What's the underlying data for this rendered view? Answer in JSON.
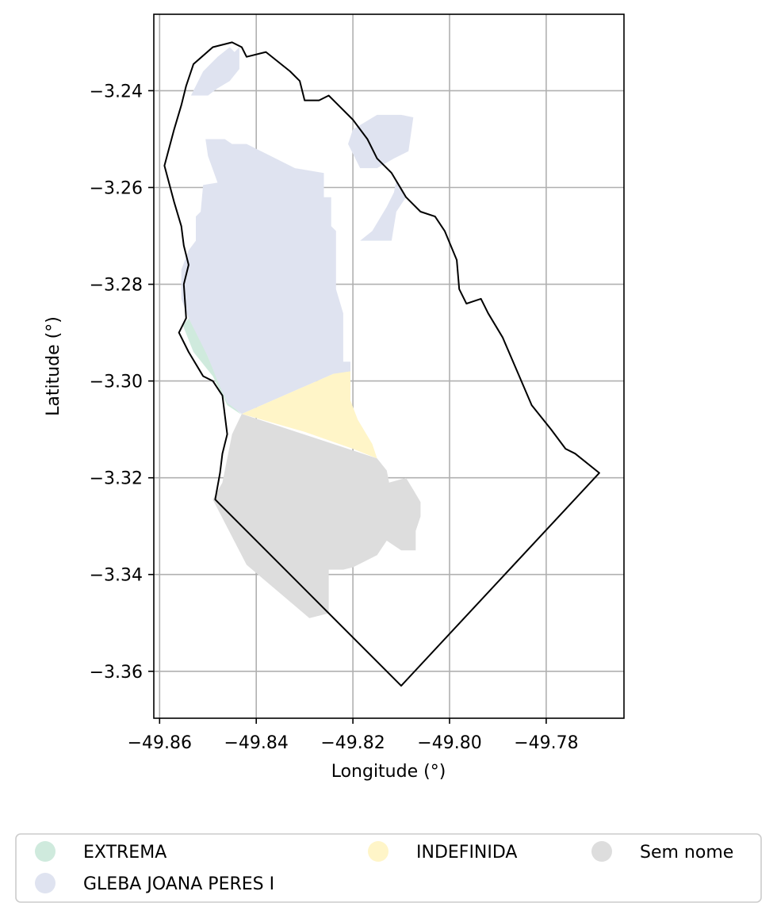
{
  "chart_data": {
    "type": "map",
    "title": "",
    "xlabel": "Longitude (°)",
    "ylabel": "Latitude (°)",
    "xlim": [
      -49.8612,
      -49.7639
    ],
    "ylim": [
      -3.3697,
      -3.2242
    ],
    "grid": true,
    "x_ticks": [
      {
        "value": -49.86,
        "label": "−49.86"
      },
      {
        "value": -49.84,
        "label": "−49.84"
      },
      {
        "value": -49.82,
        "label": "−49.82"
      },
      {
        "value": -49.8,
        "label": "−49.80"
      },
      {
        "value": -49.78,
        "label": "−49.78"
      }
    ],
    "y_ticks": [
      {
        "value": -3.24,
        "label": "−3.24"
      },
      {
        "value": -3.26,
        "label": "−3.26"
      },
      {
        "value": -3.28,
        "label": "−3.28"
      },
      {
        "value": -3.3,
        "label": "−3.30"
      },
      {
        "value": -3.32,
        "label": "−3.32"
      },
      {
        "value": -3.34,
        "label": "−3.34"
      },
      {
        "value": -3.36,
        "label": "−3.36"
      }
    ],
    "legend": {
      "placement": "bottom, below plot",
      "columns": 3,
      "entries": [
        {
          "label": "EXTREMA",
          "color": "#cfeadd"
        },
        {
          "label": "GLEBA JOANA PERES I",
          "color": "#dfe3f0"
        },
        {
          "label": "INDEFINIDA",
          "color": "#fff5c8"
        },
        {
          "label": "Sem nome",
          "color": "#dddddd"
        }
      ]
    },
    "regions": [
      {
        "name": "EXTREMA",
        "color": "#cfeadd",
        "lonlat": [
          [
            -49.8552,
            -3.2885
          ],
          [
            -49.8535,
            -3.2865
          ],
          [
            -49.85,
            -3.295
          ],
          [
            -49.847,
            -3.302
          ],
          [
            -49.844,
            -3.306
          ],
          [
            -49.843,
            -3.307
          ],
          [
            -49.846,
            -3.305
          ],
          [
            -49.849,
            -3.299
          ],
          [
            -49.853,
            -3.294
          ],
          [
            -49.8552,
            -3.2885
          ]
        ]
      },
      {
        "name": "GLEBA JOANA PERES I",
        "color": "#dfe3f0",
        "lonlat": [
          [
            -49.843,
            -3.3068
          ],
          [
            -49.824,
            -3.2985
          ],
          [
            -49.8205,
            -3.299
          ],
          [
            -49.8205,
            -3.296
          ],
          [
            -49.822,
            -3.296
          ],
          [
            -49.822,
            -3.286
          ],
          [
            -49.8235,
            -3.281
          ],
          [
            -49.8235,
            -3.269
          ],
          [
            -49.8245,
            -3.268
          ],
          [
            -49.8245,
            -3.262
          ],
          [
            -49.826,
            -3.262
          ],
          [
            -49.826,
            -3.257
          ],
          [
            -49.832,
            -3.256
          ],
          [
            -49.838,
            -3.253
          ],
          [
            -49.842,
            -3.251
          ],
          [
            -49.845,
            -3.251
          ],
          [
            -49.8465,
            -3.25
          ],
          [
            -49.8505,
            -3.25
          ],
          [
            -49.85,
            -3.2535
          ],
          [
            -49.848,
            -3.259
          ],
          [
            -49.851,
            -3.2595
          ],
          [
            -49.8515,
            -3.265
          ],
          [
            -49.8525,
            -3.266
          ],
          [
            -49.8525,
            -3.271
          ],
          [
            -49.854,
            -3.273
          ],
          [
            -49.8555,
            -3.277
          ],
          [
            -49.8555,
            -3.283
          ],
          [
            -49.854,
            -3.287
          ],
          [
            -49.85,
            -3.295
          ],
          [
            -49.848,
            -3.3
          ],
          [
            -49.846,
            -3.3045
          ],
          [
            -49.843,
            -3.3068
          ]
        ]
      },
      {
        "name": "GLEBA JOANA PERES I",
        "color": "#dfe3f0",
        "lonlat": [
          [
            -49.8535,
            -3.241
          ],
          [
            -49.851,
            -3.236
          ],
          [
            -49.848,
            -3.233
          ],
          [
            -49.8455,
            -3.231
          ],
          [
            -49.8445,
            -3.232
          ],
          [
            -49.8435,
            -3.231
          ],
          [
            -49.8435,
            -3.2355
          ],
          [
            -49.8455,
            -3.238
          ],
          [
            -49.848,
            -3.2395
          ],
          [
            -49.85,
            -3.241
          ],
          [
            -49.8535,
            -3.241
          ]
        ]
      },
      {
        "name": "GLEBA JOANA PERES I",
        "color": "#dfe3f0",
        "lonlat": [
          [
            -49.8185,
            -3.256
          ],
          [
            -49.821,
            -3.251
          ],
          [
            -49.82,
            -3.248
          ],
          [
            -49.815,
            -3.245
          ],
          [
            -49.81,
            -3.245
          ],
          [
            -49.8075,
            -3.2455
          ],
          [
            -49.8085,
            -3.2525
          ],
          [
            -49.8115,
            -3.254
          ],
          [
            -49.815,
            -3.256
          ],
          [
            -49.8185,
            -3.256
          ]
        ]
      },
      {
        "name": "GLEBA JOANA PERES I",
        "color": "#dfe3f0",
        "lonlat": [
          [
            -49.8185,
            -3.271
          ],
          [
            -49.812,
            -3.271
          ],
          [
            -49.811,
            -3.265
          ],
          [
            -49.809,
            -3.262
          ],
          [
            -49.811,
            -3.2585
          ],
          [
            -49.8115,
            -3.261
          ],
          [
            -49.813,
            -3.264
          ],
          [
            -49.816,
            -3.269
          ],
          [
            -49.8185,
            -3.271
          ]
        ]
      },
      {
        "name": "INDEFINIDA",
        "color": "#fff5c8",
        "lonlat": [
          [
            -49.843,
            -3.3068
          ],
          [
            -49.824,
            -3.2985
          ],
          [
            -49.8205,
            -3.298
          ],
          [
            -49.8205,
            -3.304
          ],
          [
            -49.819,
            -3.308
          ],
          [
            -49.816,
            -3.313
          ],
          [
            -49.815,
            -3.316
          ],
          [
            -49.82,
            -3.314
          ],
          [
            -49.83,
            -3.3105
          ],
          [
            -49.843,
            -3.3068
          ]
        ]
      },
      {
        "name": "Sem nome",
        "color": "#dddddd",
        "lonlat": [
          [
            -49.843,
            -3.3068
          ],
          [
            -49.815,
            -3.316
          ],
          [
            -49.813,
            -3.3185
          ],
          [
            -49.8125,
            -3.321
          ],
          [
            -49.809,
            -3.32
          ],
          [
            -49.8075,
            -3.3225
          ],
          [
            -49.806,
            -3.325
          ],
          [
            -49.806,
            -3.328
          ],
          [
            -49.807,
            -3.331
          ],
          [
            -49.807,
            -3.335
          ],
          [
            -49.81,
            -3.335
          ],
          [
            -49.813,
            -3.333
          ],
          [
            -49.815,
            -3.336
          ],
          [
            -49.818,
            -3.3375
          ],
          [
            -49.82,
            -3.3385
          ],
          [
            -49.822,
            -3.339
          ],
          [
            -49.825,
            -3.339
          ],
          [
            -49.825,
            -3.348
          ],
          [
            -49.829,
            -3.349
          ],
          [
            -49.842,
            -3.338
          ],
          [
            -49.849,
            -3.3245
          ],
          [
            -49.847,
            -3.321
          ],
          [
            -49.846,
            -3.316
          ],
          [
            -49.845,
            -3.311
          ],
          [
            -49.843,
            -3.3068
          ]
        ]
      }
    ],
    "boundary_lonlat": [
      [
        -49.859,
        -3.2555
      ],
      [
        -49.857,
        -3.248
      ],
      [
        -49.8555,
        -3.243
      ],
      [
        -49.8545,
        -3.239
      ],
      [
        -49.853,
        -3.2345
      ],
      [
        -49.849,
        -3.231
      ],
      [
        -49.845,
        -3.23
      ],
      [
        -49.843,
        -3.231
      ],
      [
        -49.842,
        -3.233
      ],
      [
        -49.838,
        -3.232
      ],
      [
        -49.833,
        -3.236
      ],
      [
        -49.831,
        -3.238
      ],
      [
        -49.83,
        -3.242
      ],
      [
        -49.827,
        -3.242
      ],
      [
        -49.825,
        -3.241
      ],
      [
        -49.823,
        -3.243
      ],
      [
        -49.82,
        -3.246
      ],
      [
        -49.817,
        -3.25
      ],
      [
        -49.815,
        -3.254
      ],
      [
        -49.812,
        -3.257
      ],
      [
        -49.809,
        -3.262
      ],
      [
        -49.806,
        -3.265
      ],
      [
        -49.803,
        -3.266
      ],
      [
        -49.801,
        -3.269
      ],
      [
        -49.7985,
        -3.275
      ],
      [
        -49.798,
        -3.281
      ],
      [
        -49.7965,
        -3.284
      ],
      [
        -49.7935,
        -3.283
      ],
      [
        -49.792,
        -3.286
      ],
      [
        -49.789,
        -3.291
      ],
      [
        -49.786,
        -3.298
      ],
      [
        -49.783,
        -3.305
      ],
      [
        -49.779,
        -3.31
      ],
      [
        -49.776,
        -3.314
      ],
      [
        -49.774,
        -3.315
      ],
      [
        -49.769,
        -3.319
      ],
      [
        -49.81,
        -3.363
      ],
      [
        -49.8485,
        -3.3245
      ],
      [
        -49.8475,
        -3.319
      ],
      [
        -49.847,
        -3.315
      ],
      [
        -49.846,
        -3.311
      ],
      [
        -49.847,
        -3.303
      ],
      [
        -49.849,
        -3.3
      ],
      [
        -49.851,
        -3.299
      ],
      [
        -49.854,
        -3.294
      ],
      [
        -49.856,
        -3.29
      ],
      [
        -49.8545,
        -3.287
      ],
      [
        -49.855,
        -3.28
      ],
      [
        -49.854,
        -3.276
      ],
      [
        -49.855,
        -3.272
      ],
      [
        -49.8555,
        -3.268
      ],
      [
        -49.857,
        -3.263
      ],
      [
        -49.859,
        -3.2555
      ]
    ]
  }
}
